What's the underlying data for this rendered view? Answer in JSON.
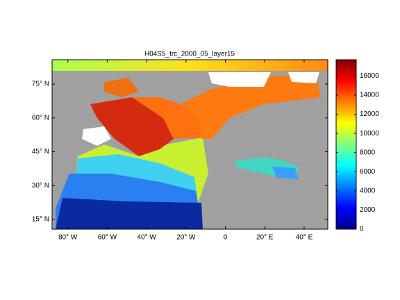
{
  "map": {
    "title": "H04S5_trc_2000_05_layer15",
    "xlim": [
      -88,
      52
    ],
    "ylim": [
      10.7,
      85.8
    ],
    "xticks": [
      {
        "value": -80,
        "label": "80° W"
      },
      {
        "value": -60,
        "label": "60° W"
      },
      {
        "value": -40,
        "label": "40° W"
      },
      {
        "value": -20,
        "label": "20° W"
      },
      0,
      {
        "value": 20,
        "label": "20° E"
      },
      {
        "value": 40,
        "label": "40° E"
      }
    ],
    "yticks": [
      {
        "value": 15,
        "label": "15° N"
      },
      {
        "value": 30,
        "label": "30° N"
      },
      {
        "value": 45,
        "label": "45° N"
      },
      {
        "value": 60,
        "label": "60° N"
      },
      {
        "value": 75,
        "label": "75° N"
      }
    ]
  },
  "colorbar": {
    "clim": [
      0,
      17700
    ],
    "ticks": [
      0,
      2000,
      4000,
      6000,
      8000,
      10000,
      12000,
      14000,
      16000
    ]
  }
}
